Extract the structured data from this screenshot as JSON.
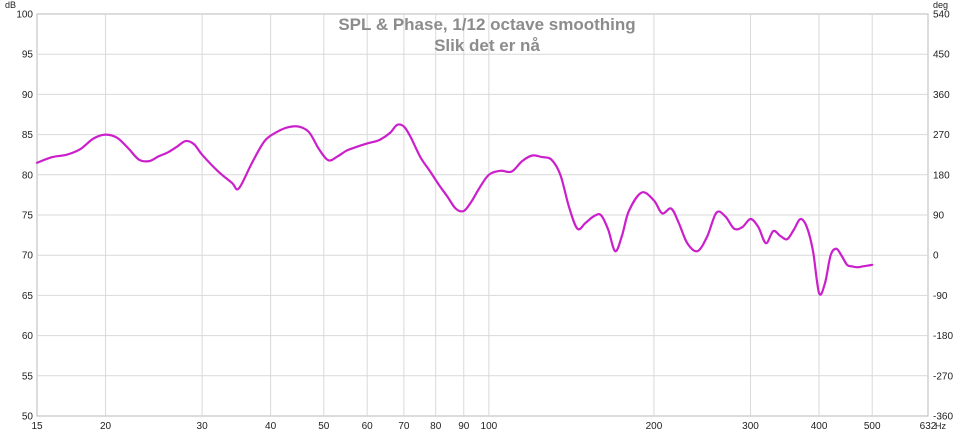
{
  "chart_data": {
    "type": "line",
    "title": "SPL & Phase, 1/12 octave smoothing",
    "subtitle": "Slik det er nå",
    "ylabel_left_unit": "dB",
    "ylabel_right_unit": "deg",
    "xlabel_unit": "Hz",
    "x_scale": "log",
    "xlim": [
      15,
      632
    ],
    "ylim": [
      50,
      100
    ],
    "y2lim": [
      -360,
      540
    ],
    "grid": true,
    "x_ticks": [
      "15",
      "20",
      "30",
      "40",
      "50",
      "60",
      "70",
      "80",
      "90",
      "100",
      "200",
      "300",
      "400",
      "500",
      "632"
    ],
    "y_ticks": [
      "100",
      "95",
      "90",
      "85",
      "80",
      "75",
      "70",
      "65",
      "60",
      "55",
      "50"
    ],
    "y2_ticks": [
      "540",
      "450",
      "360",
      "270",
      "180",
      "90",
      "0",
      "-90",
      "-180",
      "-270",
      "-360"
    ],
    "series": [
      {
        "color": "#cc1fcc",
        "x": [
          15,
          16,
          17,
          18,
          19,
          20,
          21,
          22,
          23,
          24,
          25,
          26,
          27,
          28,
          29,
          30,
          32,
          34,
          35,
          37,
          39,
          41,
          43,
          45,
          47,
          49,
          51,
          53,
          55,
          57,
          60,
          63,
          66,
          68,
          70,
          72,
          75,
          78,
          81,
          84,
          87,
          90,
          93,
          96,
          100,
          105,
          110,
          115,
          120,
          125,
          130,
          135,
          140,
          145,
          150,
          155,
          160,
          165,
          170,
          175,
          180,
          190,
          200,
          207,
          215,
          222,
          230,
          240,
          250,
          260,
          270,
          280,
          290,
          300,
          310,
          320,
          330,
          340,
          350,
          360,
          370,
          380,
          390,
          400,
          410,
          420,
          430,
          440,
          450,
          460,
          470,
          480,
          490,
          500
        ],
        "y": [
          81.5,
          82.2,
          82.5,
          83.2,
          84.5,
          85.0,
          84.6,
          83.3,
          81.9,
          81.7,
          82.3,
          82.8,
          83.5,
          84.2,
          83.8,
          82.5,
          80.5,
          79.0,
          78.3,
          81.5,
          84.2,
          85.3,
          85.9,
          86.0,
          85.3,
          83.2,
          81.8,
          82.3,
          83.0,
          83.4,
          83.9,
          84.3,
          85.2,
          86.2,
          86.0,
          84.7,
          82.2,
          80.5,
          78.8,
          77.3,
          75.8,
          75.5,
          76.7,
          78.3,
          80.0,
          80.5,
          80.4,
          81.7,
          82.4,
          82.2,
          81.9,
          80.0,
          76.0,
          73.3,
          74.0,
          74.8,
          75.0,
          73.2,
          70.5,
          72.5,
          75.5,
          77.8,
          76.8,
          75.2,
          75.8,
          74.0,
          71.5,
          70.5,
          72.3,
          75.3,
          74.8,
          73.3,
          73.5,
          74.5,
          73.5,
          71.5,
          73.0,
          72.4,
          72.0,
          73.2,
          74.5,
          73.5,
          70.5,
          65.3,
          66.5,
          70.0,
          70.8,
          69.9,
          68.8,
          68.6,
          68.5,
          68.6,
          68.7,
          68.8
        ]
      }
    ]
  }
}
